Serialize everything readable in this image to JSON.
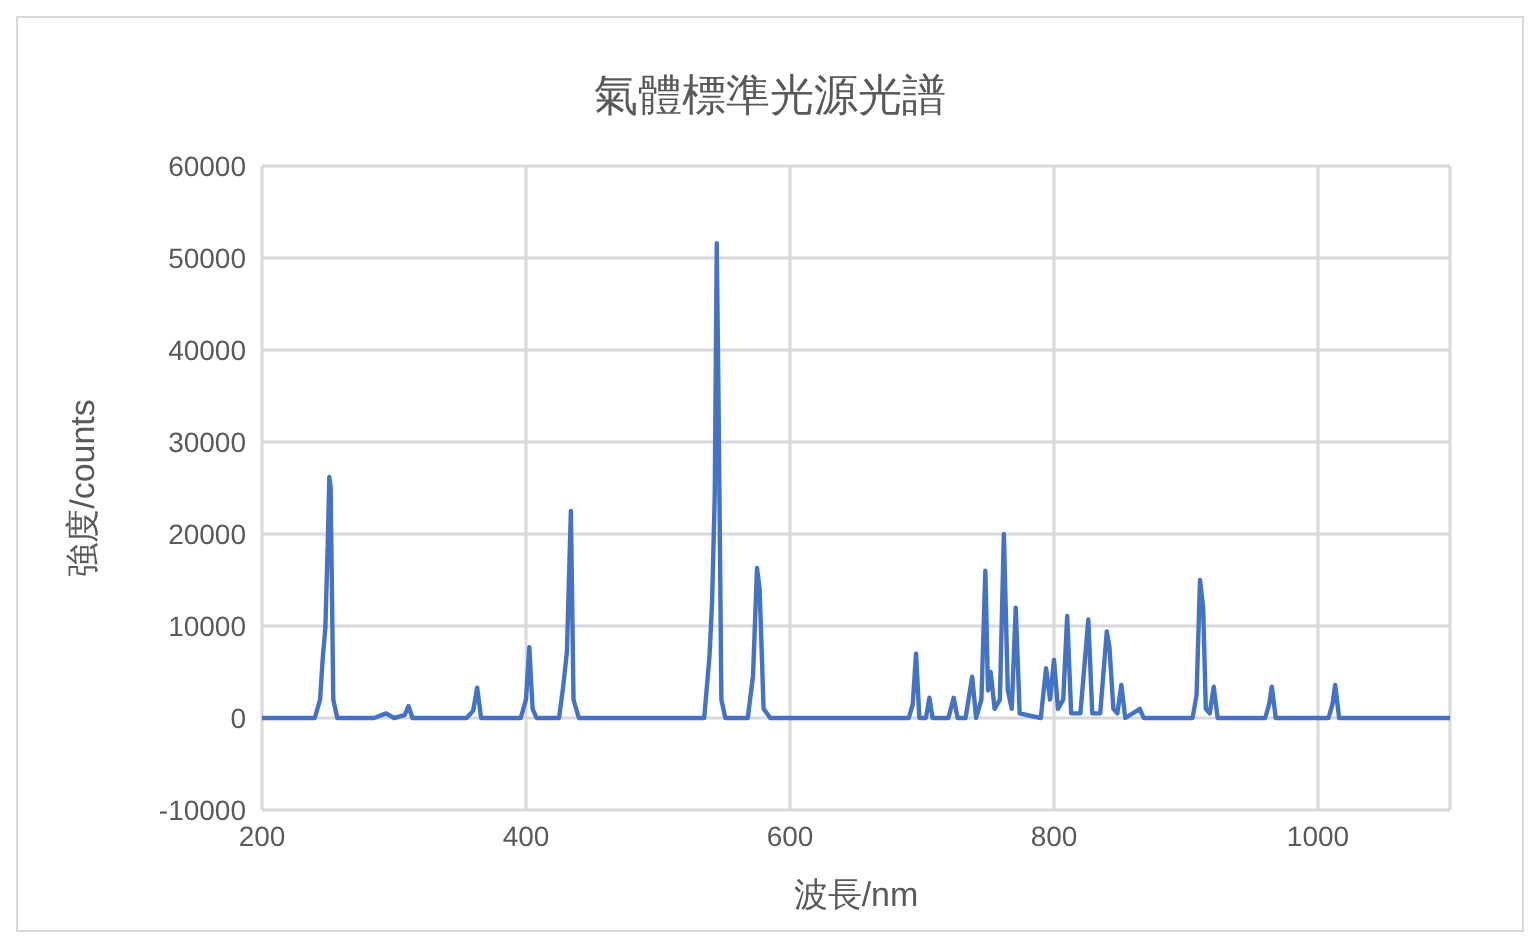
{
  "chart_data": {
    "type": "line",
    "title": "氣體標準光源光譜",
    "xlabel": "波長/nm",
    "ylabel": "強度/counts",
    "x": [
      200,
      240,
      244,
      246,
      248,
      250,
      251,
      252,
      254,
      257,
      285,
      294,
      300,
      308,
      311,
      314,
      355,
      360,
      363,
      366,
      396,
      400,
      402.5,
      405,
      408,
      425,
      428,
      431,
      433,
      434,
      436,
      440,
      535,
      539,
      541,
      543,
      544.5,
      546,
      548,
      551,
      568,
      572,
      575,
      577,
      580,
      585,
      690,
      693,
      695.5,
      698,
      703,
      705.6,
      708,
      720,
      724,
      727,
      733,
      738,
      741,
      745,
      748,
      750,
      752,
      755,
      759,
      762,
      765,
      768,
      771,
      774,
      780,
      790,
      794,
      797,
      800,
      803,
      807,
      810,
      813,
      820,
      826,
      829,
      835,
      840,
      842,
      845,
      848,
      851,
      854,
      865,
      868,
      905,
      908,
      910.6,
      913,
      915,
      918,
      921,
      924,
      960,
      963,
      965,
      968,
      1008,
      1011,
      1013,
      1016,
      1100
    ],
    "series": [
      {
        "color": "#4472c4",
        "values": [
          0,
          0,
          2000,
          6500,
          9800,
          20000,
          26200,
          25000,
          2000,
          0,
          0,
          500,
          0,
          300,
          1300,
          0,
          0,
          800,
          3300,
          0,
          0,
          2000,
          7700,
          1000,
          0,
          0,
          3200,
          7200,
          17400,
          22500,
          2000,
          0,
          0,
          6700,
          12700,
          24300,
          51600,
          32800,
          2000,
          0,
          0,
          4600,
          16300,
          14000,
          1000,
          0,
          0,
          1500,
          7000,
          0,
          0,
          2200,
          0,
          0,
          2200,
          0,
          0,
          4500,
          0,
          2000,
          16000,
          3000,
          5000,
          1000,
          2000,
          20000,
          3000,
          1000,
          12000,
          500,
          300,
          0,
          5400,
          2000,
          6300,
          1000,
          2000,
          11100,
          500,
          500,
          10700,
          500,
          500,
          9400,
          7700,
          1000,
          500,
          3600,
          0,
          1000,
          0,
          0,
          2500,
          15000,
          12000,
          1000,
          500,
          3400,
          0,
          0,
          1500,
          3400,
          0,
          0,
          1500,
          3600,
          0,
          0
        ]
      }
    ],
    "xlim": [
      200,
      1100
    ],
    "xticks": [
      200,
      400,
      600,
      800,
      1000
    ],
    "ylim": [
      -10000,
      60000
    ],
    "yticks": [
      -10000,
      0,
      10000,
      20000,
      30000,
      40000,
      50000,
      60000
    ],
    "grid": true,
    "marker": "none",
    "line_style": "solid"
  }
}
